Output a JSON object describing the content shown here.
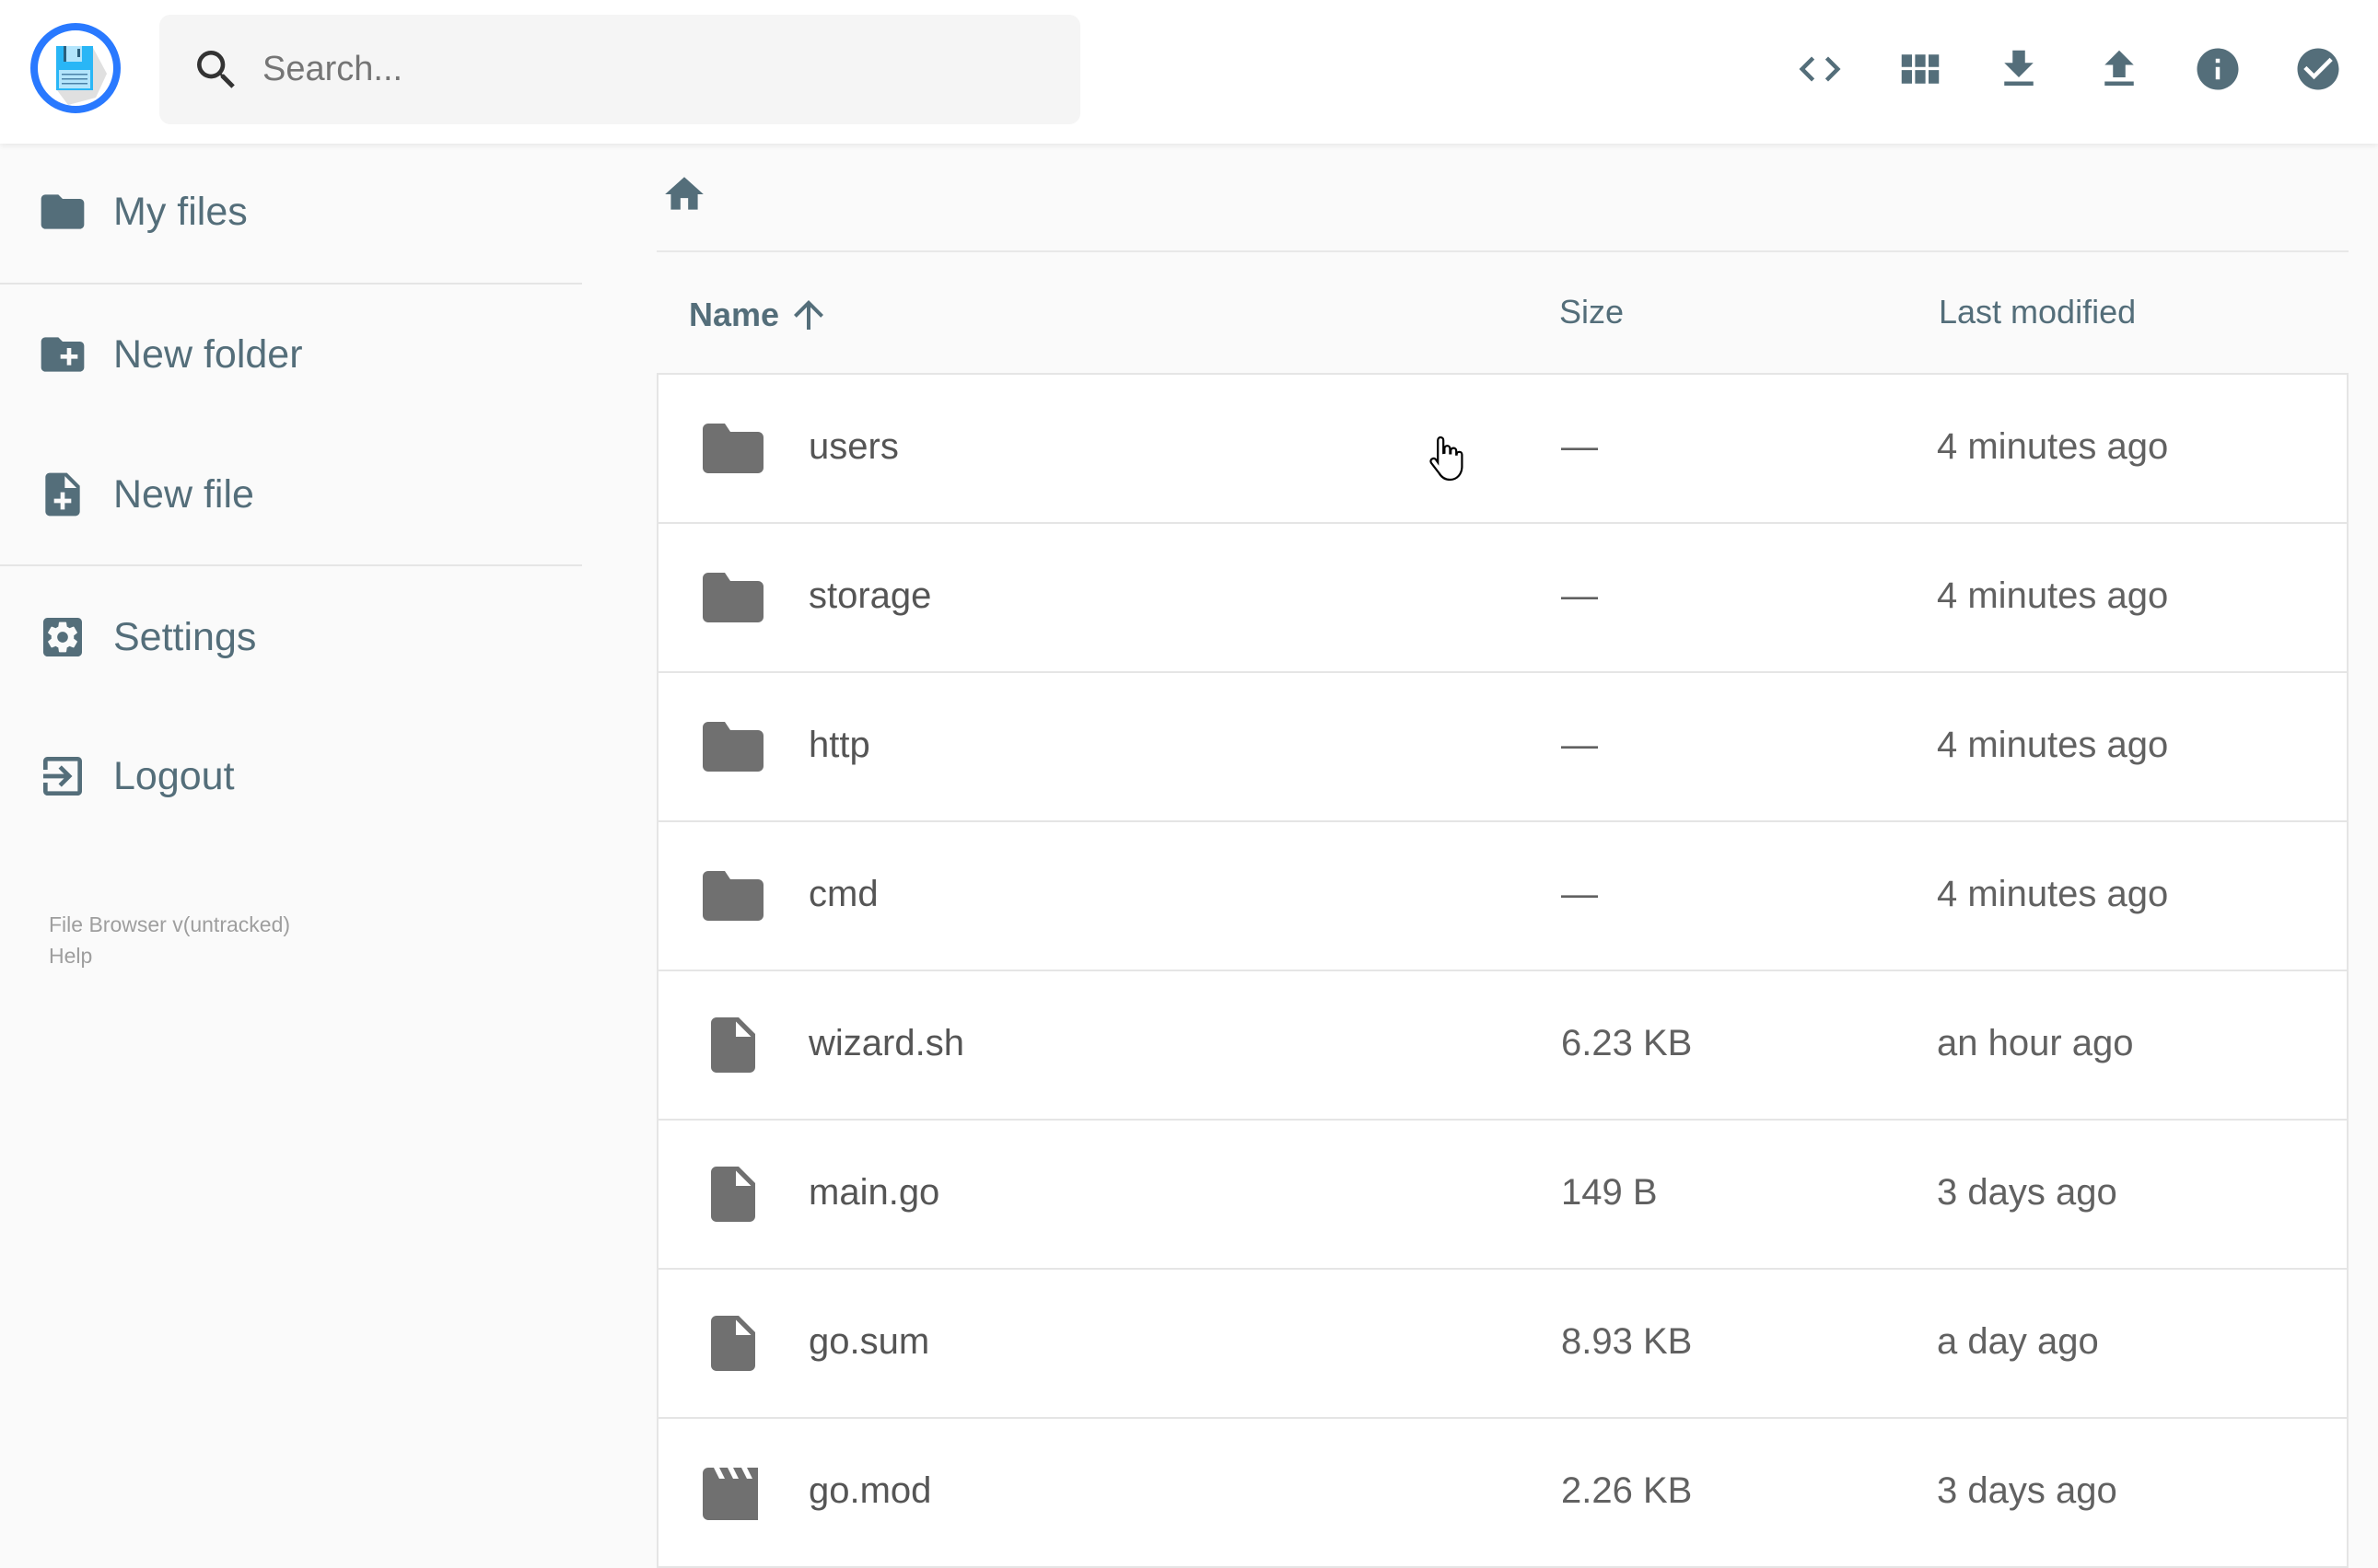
{
  "header": {
    "search_placeholder": "Search...",
    "actions": [
      {
        "name": "code-icon",
        "label": "Toggle shell"
      },
      {
        "name": "grid-view-icon",
        "label": "Switch view"
      },
      {
        "name": "download-icon",
        "label": "Download"
      },
      {
        "name": "upload-icon",
        "label": "Upload"
      },
      {
        "name": "info-icon",
        "label": "Info"
      },
      {
        "name": "check-circle-icon",
        "label": "Select multiple"
      }
    ]
  },
  "sidebar": {
    "items": [
      {
        "label": "My files",
        "icon": "folder-icon"
      },
      {
        "label": "New folder",
        "icon": "create-new-folder-icon"
      },
      {
        "label": "New file",
        "icon": "note-add-icon"
      },
      {
        "label": "Settings",
        "icon": "settings-icon"
      },
      {
        "label": "Logout",
        "icon": "exit-icon"
      }
    ],
    "footer": {
      "version": "File Browser v(untracked)",
      "help": "Help"
    }
  },
  "table": {
    "headers": {
      "name": "Name",
      "size": "Size",
      "modified": "Last modified"
    },
    "sort": "ascending",
    "rows": [
      {
        "type": "folder",
        "name": "users",
        "size": "—",
        "modified": "4 minutes ago"
      },
      {
        "type": "folder",
        "name": "storage",
        "size": "—",
        "modified": "4 minutes ago"
      },
      {
        "type": "folder",
        "name": "http",
        "size": "—",
        "modified": "4 minutes ago"
      },
      {
        "type": "folder",
        "name": "cmd",
        "size": "—",
        "modified": "4 minutes ago"
      },
      {
        "type": "file",
        "name": "wizard.sh",
        "size": "6.23 KB",
        "modified": "an hour ago"
      },
      {
        "type": "file",
        "name": "main.go",
        "size": "149 B",
        "modified": "3 days ago"
      },
      {
        "type": "file",
        "name": "go.sum",
        "size": "8.93 KB",
        "modified": "a day ago"
      },
      {
        "type": "video",
        "name": "go.mod",
        "size": "2.26 KB",
        "modified": "3 days ago"
      }
    ]
  },
  "colors": {
    "accent": "#2979ff",
    "icon": "#546e7a",
    "file_icon": "#707070"
  }
}
